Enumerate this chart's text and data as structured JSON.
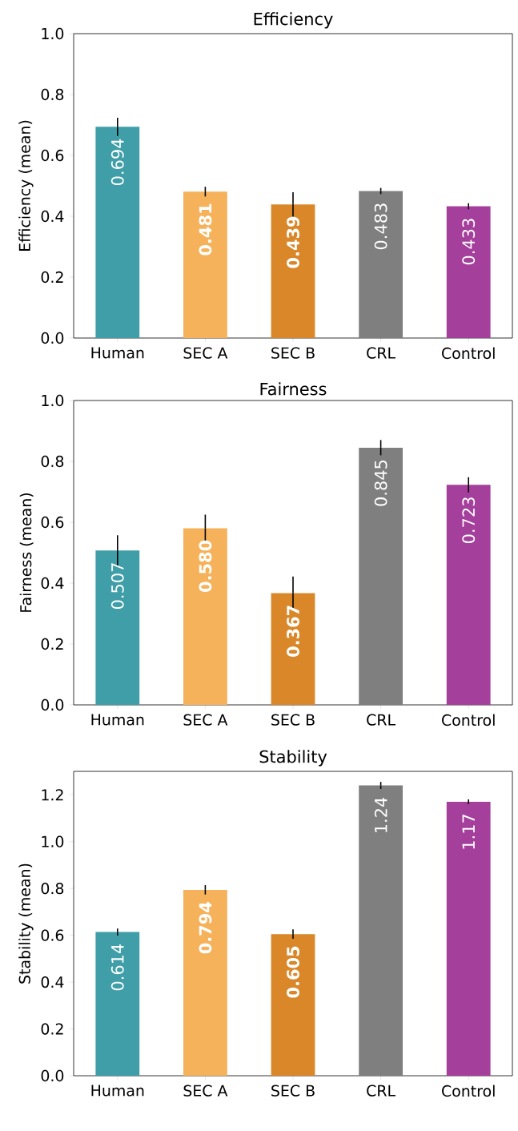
{
  "chart_data": [
    {
      "type": "bar",
      "title": "Efficiency",
      "ylabel": "Efficiency (mean)",
      "categories": [
        "Human",
        "SEC A",
        "SEC B",
        "CRL",
        "Control"
      ],
      "values": [
        0.694,
        0.481,
        0.439,
        0.483,
        0.433
      ],
      "colors": [
        "#3f9ea7",
        "#f5b25a",
        "#d98728",
        "#7f7f7f",
        "#a53f9c"
      ],
      "errors": [
        0.03,
        0.016,
        0.04,
        0.01,
        0.01
      ],
      "value_labels": [
        "0.694",
        "**0.481**",
        "**0.439**",
        "0.483",
        "0.433"
      ],
      "ylim": [
        0,
        1.0
      ],
      "yticks": [
        {
          "value": 0,
          "label": "0.0"
        },
        {
          "value": 0.2,
          "label": "0.2"
        },
        {
          "value": 0.4,
          "label": "0.4"
        },
        {
          "value": 0.6,
          "label": "0.6"
        },
        {
          "value": 0.8,
          "label": "0.8"
        },
        {
          "value": 1.0,
          "label": "1.0"
        }
      ]
    },
    {
      "type": "bar",
      "title": "Fairness",
      "ylabel": "Fairness (mean)",
      "categories": [
        "Human",
        "SEC A",
        "SEC B",
        "CRL",
        "Control"
      ],
      "values": [
        0.507,
        0.58,
        0.367,
        0.845,
        0.723
      ],
      "colors": [
        "#3f9ea7",
        "#f5b25a",
        "#d98728",
        "#7f7f7f",
        "#a53f9c"
      ],
      "errors": [
        0.05,
        0.045,
        0.055,
        0.025,
        0.025
      ],
      "value_labels": [
        "0.507",
        "**0.580**",
        "**0.367**",
        "0.845",
        "0.723"
      ],
      "ylim": [
        0,
        1.0
      ],
      "yticks": [
        {
          "value": 0,
          "label": "0.0"
        },
        {
          "value": 0.2,
          "label": "0.2"
        },
        {
          "value": 0.4,
          "label": "0.4"
        },
        {
          "value": 0.6,
          "label": "0.6"
        },
        {
          "value": 0.8,
          "label": "0.8"
        },
        {
          "value": 1.0,
          "label": "1.0"
        }
      ]
    },
    {
      "type": "bar",
      "title": "Stability",
      "ylabel": "Stability (mean)",
      "categories": [
        "Human",
        "SEC A",
        "SEC B",
        "CRL",
        "Control"
      ],
      "values": [
        0.614,
        0.794,
        0.605,
        1.24,
        1.17
      ],
      "colors": [
        "#3f9ea7",
        "#f5b25a",
        "#d98728",
        "#7f7f7f",
        "#a53f9c"
      ],
      "errors": [
        0.015,
        0.02,
        0.02,
        0.015,
        0.01
      ],
      "value_labels": [
        "0.614",
        "**0.794**",
        "**0.605**",
        "1.24",
        "1.17"
      ],
      "ylim": [
        0,
        1.3
      ],
      "yticks": [
        {
          "value": 0,
          "label": "0.0"
        },
        {
          "value": 0.2,
          "label": "0.2"
        },
        {
          "value": 0.4,
          "label": "0.4"
        },
        {
          "value": 0.6,
          "label": "0.6"
        },
        {
          "value": 0.8,
          "label": "0.8"
        },
        {
          "value": 1.0,
          "label": "1.0"
        },
        {
          "value": 1.2,
          "label": "1.2"
        }
      ]
    }
  ]
}
